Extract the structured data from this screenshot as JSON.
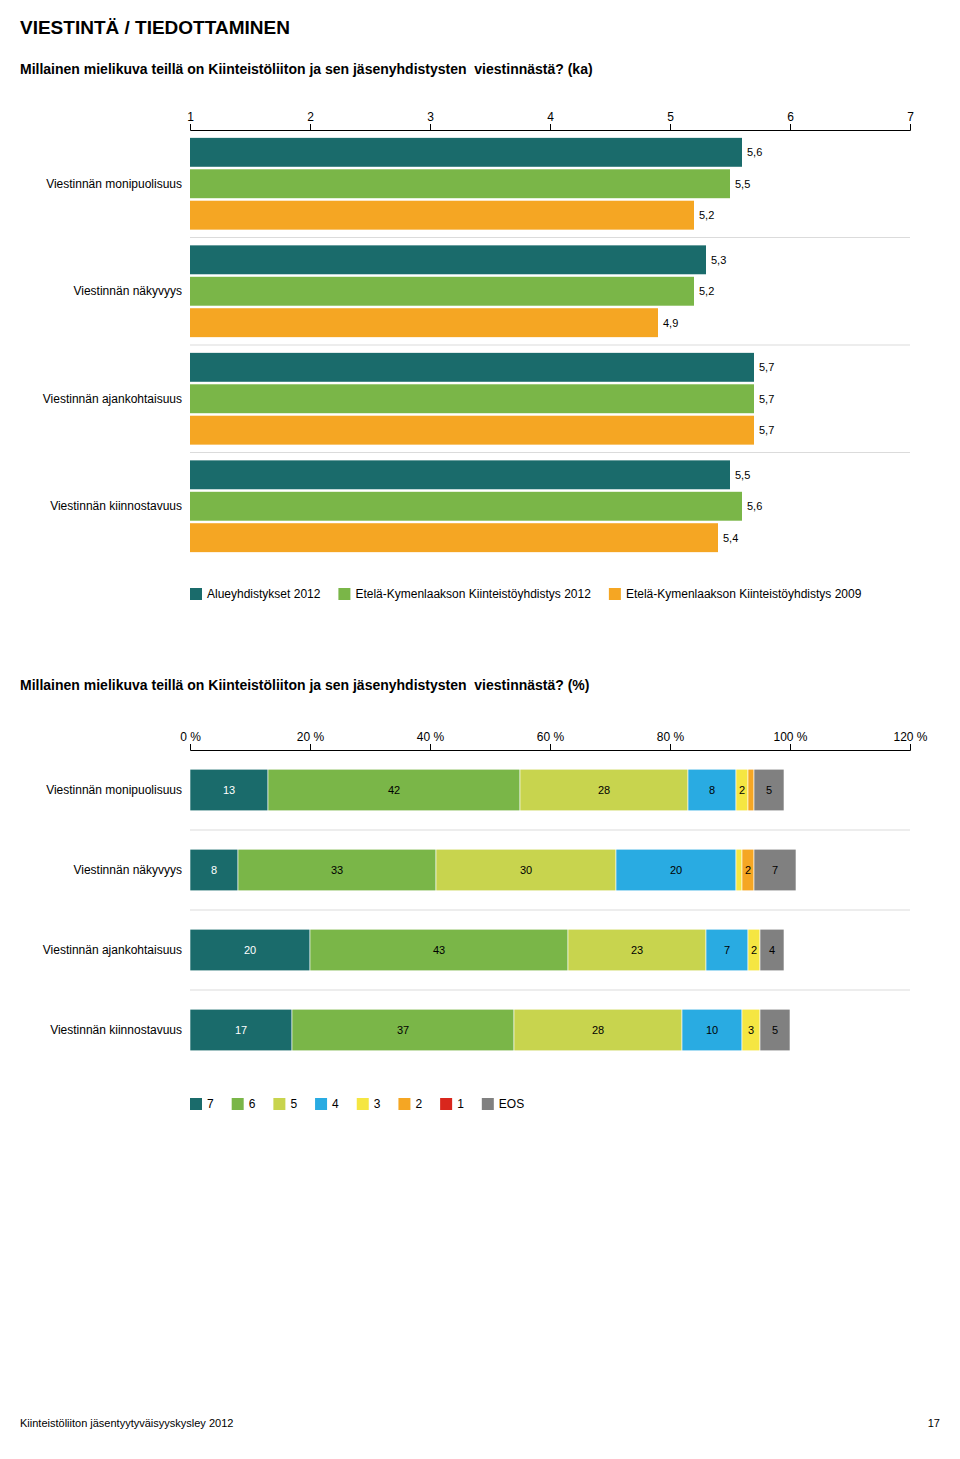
{
  "title": "VIESTINTÄ / TIEDOTTAMINEN",
  "annotations": [
    "Kiinteistöliiton jäsentyytyväisyyskysley 2012",
    "17"
  ],
  "chart_data": [
    {
      "type": "bar",
      "orientation": "horizontal",
      "title": "Millainen mielikuva teillä on Kiinteistöliiton ja sen jäsenyhdistysten  viestinnästä? (ka)",
      "categories": [
        "Viestinnän monipuolisuus",
        "Viestinnän näkyvyys",
        "Viestinnän ajankohtaisuus",
        "Viestinnän kiinnostavuus"
      ],
      "series": [
        {
          "name": "Alueyhdistykset 2012",
          "color": "#1a6b6b",
          "values": [
            5.6,
            5.3,
            5.7,
            5.5
          ],
          "value_labels": [
            "5,6",
            "5,3",
            "5,7",
            "5,5"
          ]
        },
        {
          "name": "Etelä-Kymenlaakson Kiinteistöyhdistys 2012",
          "color": "#7ab648",
          "values": [
            5.5,
            5.2,
            5.7,
            5.6
          ],
          "value_labels": [
            "5,5",
            "5,2",
            "5,7",
            "5,6"
          ]
        },
        {
          "name": "Etelä-Kymenlaakson Kiinteistöyhdistys 2009",
          "color": "#f5a623",
          "values": [
            5.2,
            4.9,
            5.7,
            5.4
          ],
          "value_labels": [
            "5,2",
            "4,9",
            "5,7",
            "5,4"
          ]
        }
      ],
      "xlim": [
        1,
        7
      ],
      "xticks": [
        1,
        2,
        3,
        4,
        5,
        6,
        7
      ],
      "grid": false,
      "legend": "bottom",
      "data_labels": true
    },
    {
      "type": "bar",
      "orientation": "horizontal",
      "stacked": true,
      "title": "Millainen mielikuva teillä on Kiinteistöliiton ja sen jäsenyhdistysten  viestinnästä? (%)",
      "categories": [
        "Viestinnän monipuolisuus",
        "Viestinnän näkyvyys",
        "Viestinnän ajankohtaisuus",
        "Viestinnän kiinnostavuus"
      ],
      "series": [
        {
          "name": "7",
          "color": "#1a6b6b",
          "values": [
            13,
            8,
            20,
            17
          ],
          "value_labels": [
            "13",
            "8",
            "20",
            "17"
          ]
        },
        {
          "name": "6",
          "color": "#7ab648",
          "values": [
            42,
            33,
            43,
            37
          ],
          "value_labels": [
            "42",
            "33",
            "43",
            "37"
          ]
        },
        {
          "name": "5",
          "color": "#c8d44e",
          "values": [
            28,
            30,
            23,
            28
          ],
          "value_labels": [
            "28",
            "30",
            "23",
            "28"
          ]
        },
        {
          "name": "4",
          "color": "#29abe2",
          "values": [
            8,
            20,
            7,
            10
          ],
          "value_labels": [
            "8",
            "20",
            "7",
            "10"
          ]
        },
        {
          "name": "3",
          "color": "#f5e642",
          "values": [
            2,
            1,
            2,
            3
          ],
          "value_labels": [
            "2",
            null,
            "2",
            "3"
          ]
        },
        {
          "name": "2",
          "color": "#f5a623",
          "values": [
            1,
            2,
            0,
            0
          ],
          "value_labels": [
            null,
            "2",
            null,
            null
          ]
        },
        {
          "name": "1",
          "color": "#d9261c",
          "values": [
            0,
            0,
            0,
            0
          ],
          "value_labels": [
            null,
            null,
            null,
            null
          ]
        },
        {
          "name": "EOS",
          "color": "#808080",
          "values": [
            5,
            7,
            4,
            5
          ],
          "value_labels": [
            "5",
            "7",
            "4",
            "5"
          ]
        }
      ],
      "xlim": [
        0,
        120
      ],
      "xticks": [
        {
          "value": 0,
          "label": "0 %"
        },
        {
          "value": 20,
          "label": "20 %"
        },
        {
          "value": 40,
          "label": "40 %"
        },
        {
          "value": 60,
          "label": "60 %"
        },
        {
          "value": 80,
          "label": "80 %"
        },
        {
          "value": 100,
          "label": "100 %"
        },
        {
          "value": 120,
          "label": "120 %"
        }
      ],
      "grid": false,
      "legend": "bottom",
      "data_labels": true
    }
  ]
}
